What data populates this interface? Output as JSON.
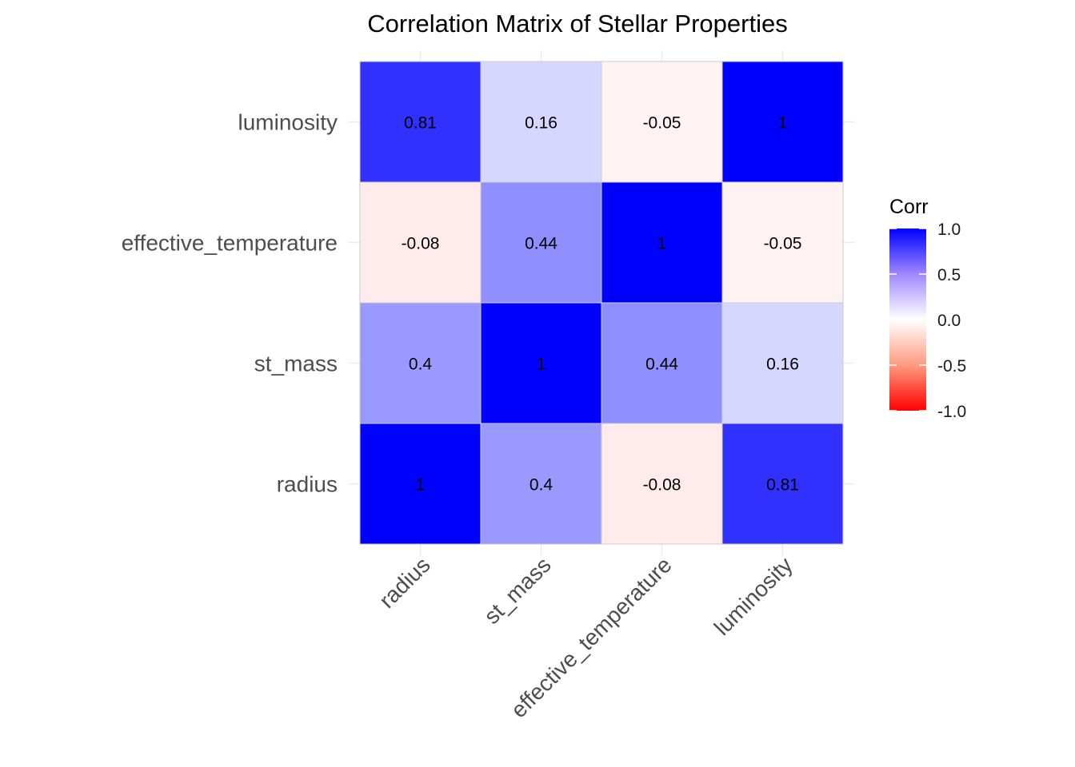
{
  "chart_data": {
    "type": "heatmap",
    "title": "Correlation Matrix of Stellar Properties",
    "x_categories": [
      "radius",
      "st_mass",
      "effective_temperature",
      "luminosity"
    ],
    "y_categories": [
      "radius",
      "st_mass",
      "effective_temperature",
      "luminosity"
    ],
    "matrix": [
      [
        1,
        0.4,
        -0.08,
        0.81
      ],
      [
        0.4,
        1,
        0.44,
        0.16
      ],
      [
        -0.08,
        0.44,
        1,
        -0.05
      ],
      [
        0.81,
        0.16,
        -0.05,
        1
      ]
    ],
    "cell_labels": [
      [
        "1",
        "0.4",
        "-0.08",
        "0.81"
      ],
      [
        "0.4",
        "1",
        "0.44",
        "0.16"
      ],
      [
        "-0.08",
        "0.44",
        "1",
        "-0.05"
      ],
      [
        "0.81",
        "0.16",
        "-0.05",
        "1"
      ]
    ],
    "legend": {
      "title": "Corr",
      "ticks": [
        "1.0",
        "0.5",
        "0.0",
        "-0.5",
        "-1.0"
      ],
      "tick_values": [
        1.0,
        0.5,
        0.0,
        -0.5,
        -1.0
      ],
      "range": [
        -1,
        1
      ],
      "placement": "right"
    },
    "colors": {
      "high": "#0000ff",
      "mid": "#ffffff",
      "low": "#ff0000"
    },
    "grid": true
  }
}
